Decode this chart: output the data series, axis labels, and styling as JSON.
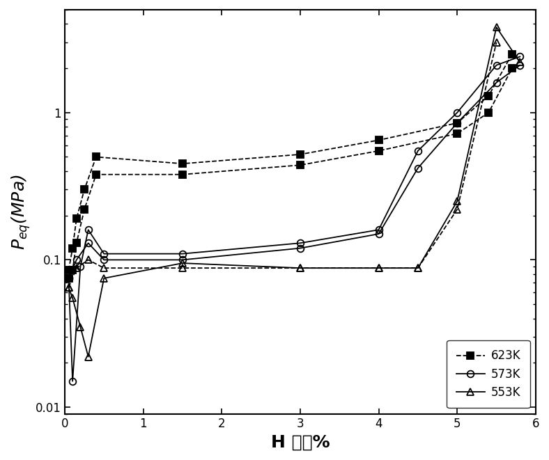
{
  "title": "",
  "xlabel": "H 质量%",
  "ylabel": "$P_{eq}$(MPa)",
  "background_color": "#ffffff",
  "xlim": [
    0,
    6
  ],
  "ylim_log": [
    0.009,
    5
  ],
  "series": [
    {
      "label": "623K",
      "marker": "s",
      "linestyle": "--",
      "color": "#000000",
      "markersize": 7,
      "fillstyle": "full",
      "x": [
        0.05,
        0.1,
        0.15,
        0.25,
        0.4,
        1.5,
        3.0,
        4.0,
        5.0,
        5.4,
        5.7
      ],
      "y": [
        0.085,
        0.12,
        0.19,
        0.3,
        0.5,
        0.45,
        0.52,
        0.65,
        0.85,
        1.3,
        2.5
      ]
    },
    {
      "label": "623K_des",
      "marker": "s",
      "linestyle": "--",
      "color": "#000000",
      "markersize": 7,
      "fillstyle": "full",
      "x": [
        0.05,
        0.1,
        0.15,
        0.25,
        0.4,
        1.5,
        3.0,
        4.0,
        5.0,
        5.4,
        5.7
      ],
      "y": [
        0.075,
        0.085,
        0.13,
        0.22,
        0.38,
        0.38,
        0.44,
        0.55,
        0.72,
        1.0,
        2.0
      ]
    },
    {
      "label": "573K",
      "marker": "o",
      "linestyle": "-",
      "color": "#000000",
      "markersize": 7,
      "fillstyle": "none",
      "x": [
        0.05,
        0.1,
        0.2,
        0.3,
        0.5,
        1.5,
        3.0,
        4.0,
        4.5,
        5.0,
        5.5,
        5.8
      ],
      "y": [
        0.075,
        0.015,
        0.09,
        0.16,
        0.11,
        0.11,
        0.13,
        0.16,
        0.55,
        1.0,
        2.1,
        2.4
      ]
    },
    {
      "label": "573K_des",
      "marker": "o",
      "linestyle": "-",
      "color": "#000000",
      "markersize": 7,
      "fillstyle": "none",
      "x": [
        0.05,
        0.15,
        0.3,
        0.5,
        1.5,
        3.0,
        4.0,
        4.5,
        5.0,
        5.5,
        5.8
      ],
      "y": [
        0.075,
        0.1,
        0.13,
        0.1,
        0.1,
        0.12,
        0.15,
        0.42,
        0.85,
        1.6,
        2.1
      ]
    },
    {
      "label": "553K",
      "marker": "^",
      "linestyle": "-",
      "color": "#000000",
      "markersize": 7,
      "fillstyle": "none",
      "x": [
        0.05,
        0.1,
        0.2,
        0.3,
        0.5,
        1.5,
        3.0,
        4.0,
        4.5,
        5.0,
        5.5,
        5.8
      ],
      "y": [
        0.065,
        0.055,
        0.035,
        0.022,
        0.075,
        0.095,
        0.088,
        0.088,
        0.088,
        0.25,
        3.8,
        2.2
      ]
    },
    {
      "label": "553K_des",
      "marker": "^",
      "linestyle": "--",
      "color": "#000000",
      "markersize": 7,
      "fillstyle": "none",
      "x": [
        0.05,
        0.15,
        0.3,
        0.5,
        1.5,
        3.0,
        4.0,
        4.5,
        5.0,
        5.5
      ],
      "y": [
        0.065,
        0.088,
        0.1,
        0.088,
        0.088,
        0.088,
        0.088,
        0.088,
        0.22,
        3.0
      ]
    }
  ],
  "legend_entries": [
    {
      "label": "623K",
      "marker": "s",
      "linestyle": "--",
      "fillstyle": "full"
    },
    {
      "label": "573K",
      "marker": "o",
      "linestyle": "-",
      "fillstyle": "none"
    },
    {
      "label": "553K",
      "marker": "^",
      "linestyle": "-",
      "fillstyle": "none"
    }
  ],
  "yticks": [
    0.01,
    0.1,
    1
  ],
  "ytick_labels": [
    "0.01",
    "0.1",
    "1"
  ],
  "xticks": [
    0,
    1,
    2,
    3,
    4,
    5,
    6
  ],
  "tick_fontsize": 12,
  "label_fontsize": 18,
  "legend_fontsize": 12
}
